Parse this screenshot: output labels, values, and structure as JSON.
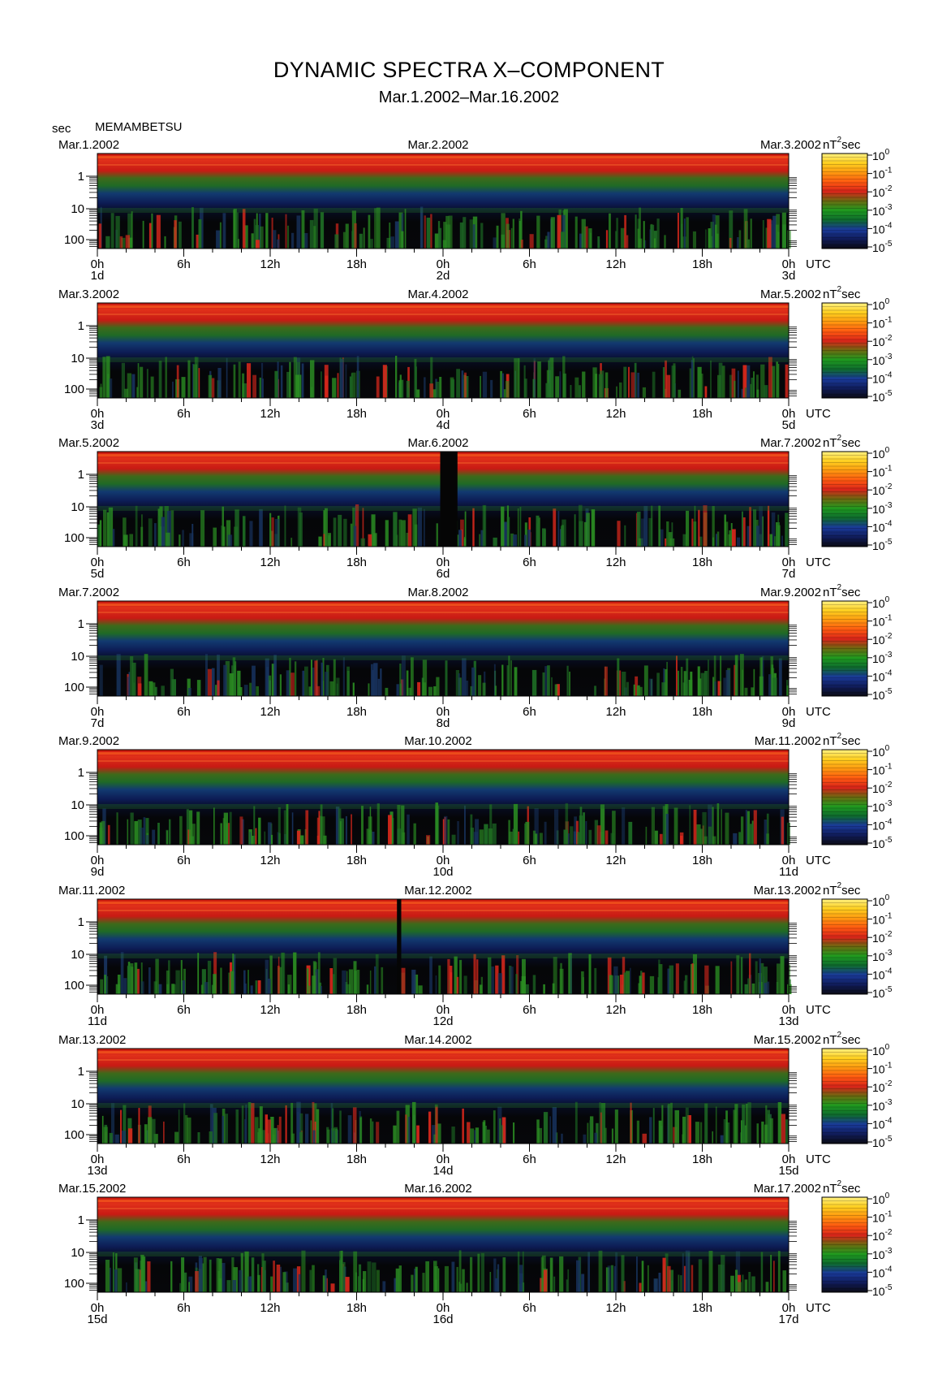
{
  "header": {
    "title": "DYNAMIC SPECTRA X–COMPONENT",
    "subtitle": "Mar.1.2002–Mar.16.2002",
    "unit_label": "sec",
    "station": "MEMAMBETSU"
  },
  "colorbar": {
    "unit_base": "nT",
    "unit_exp": "2",
    "unit_tail": "sec",
    "tick_labels": [
      {
        "base": "10",
        "exp": "0"
      },
      {
        "base": "10",
        "exp": "-1"
      },
      {
        "base": "10",
        "exp": "-2"
      },
      {
        "base": "10",
        "exp": "-3"
      },
      {
        "base": "10",
        "exp": "-4"
      },
      {
        "base": "10",
        "exp": "-5"
      }
    ],
    "colors": [
      "#0b0b14",
      "#101c5a",
      "#1a3a9a",
      "#0e6a2e",
      "#1f9a1f",
      "#6a6a10",
      "#d8241a",
      "#ff5a10",
      "#ff9a10",
      "#ffd020",
      "#fff080"
    ]
  },
  "chart_data": {
    "type": "heatmap",
    "title": "DYNAMIC SPECTRA X–COMPONENT",
    "subtitle": "Mar.1.2002–Mar.16.2002",
    "station": "MEMAMBETSU",
    "y_axis": {
      "label": "sec",
      "scale": "log",
      "tick_labels": [
        "1",
        "10",
        "100"
      ]
    },
    "x_axis": {
      "tick_labels": [
        "0h",
        "6h",
        "12h",
        "18h",
        "0h",
        "6h",
        "12h",
        "18h",
        "0h"
      ],
      "end_label": "UTC"
    },
    "color_scale": {
      "unit": "nT²sec",
      "scale": "log",
      "range": [
        1e-05,
        1
      ],
      "tick_labels": [
        "10^0",
        "10^-1",
        "10^-2",
        "10^-3",
        "10^-4",
        "10^-5"
      ]
    },
    "panels": [
      {
        "date_left": "Mar.1.2002",
        "date_mid": "Mar.2.2002",
        "date_right": "Mar.3.2002",
        "day_labels": [
          "1d",
          "2d",
          "3d"
        ],
        "data_gaps_hours": []
      },
      {
        "date_left": "Mar.3.2002",
        "date_mid": "Mar.4.2002",
        "date_right": "Mar.5.2002",
        "day_labels": [
          "3d",
          "4d",
          "5d"
        ],
        "data_gaps_hours": []
      },
      {
        "date_left": "Mar.5.2002",
        "date_mid": "Mar.6.2002",
        "date_right": "Mar.7.2002",
        "day_labels": [
          "5d",
          "6d",
          "7d"
        ],
        "data_gaps_hours": [
          [
            23.8,
            25.0
          ]
        ]
      },
      {
        "date_left": "Mar.7.2002",
        "date_mid": "Mar.8.2002",
        "date_right": "Mar.9.2002",
        "day_labels": [
          "7d",
          "8d",
          "9d"
        ],
        "data_gaps_hours": []
      },
      {
        "date_left": "Mar.9.2002",
        "date_mid": "Mar.10.2002",
        "date_right": "Mar.11.2002",
        "day_labels": [
          "9d",
          "10d",
          "11d"
        ],
        "data_gaps_hours": []
      },
      {
        "date_left": "Mar.11.2002",
        "date_mid": "Mar.12.2002",
        "date_right": "Mar.13.2002",
        "day_labels": [
          "11d",
          "12d",
          "13d"
        ],
        "data_gaps_hours": [
          [
            20.8,
            21.1
          ]
        ]
      },
      {
        "date_left": "Mar.13.2002",
        "date_mid": "Mar.14.2002",
        "date_right": "Mar.15.2002",
        "day_labels": [
          "13d",
          "14d",
          "15d"
        ],
        "data_gaps_hours": []
      },
      {
        "date_left": "Mar.15.2002",
        "date_mid": "Mar.16.2002",
        "date_right": "Mar.17.2002",
        "day_labels": [
          "15d",
          "16d",
          "17d"
        ],
        "data_gaps_hours": []
      }
    ]
  }
}
